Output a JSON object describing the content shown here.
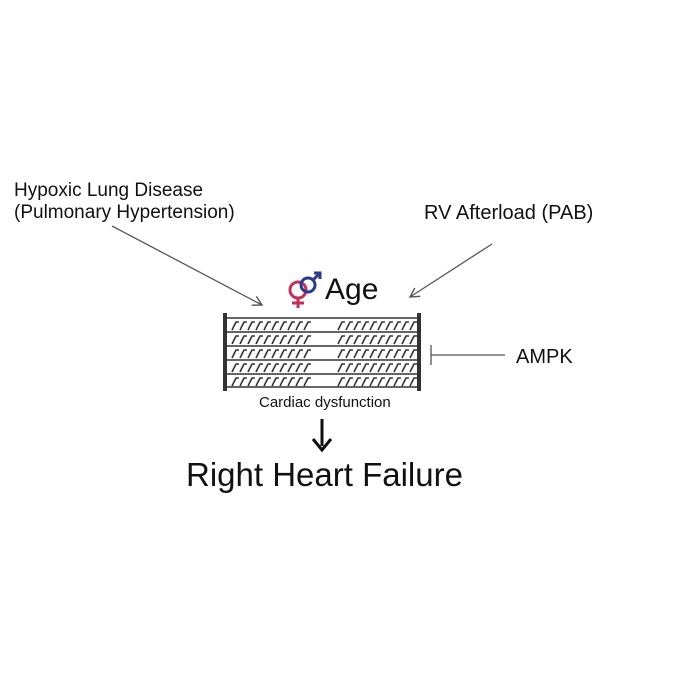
{
  "labels": {
    "hypoxic_line1": "Hypoxic Lung Disease",
    "hypoxic_line2": "(Pulmonary Hypertension)",
    "afterload": "RV Afterload (PAB)",
    "age": "Age",
    "ampk": "AMPK",
    "cardiac_dysfunction": "Cardiac dysfunction",
    "outcome": "Right Heart Failure"
  },
  "icons": {
    "sex_symbols": "female-male-symbol-icon",
    "female_color": "#c0305a",
    "male_color": "#2a3a8c"
  },
  "colors": {
    "text": "#111111",
    "arrow": "#555555",
    "sarcomere": "#333333"
  }
}
